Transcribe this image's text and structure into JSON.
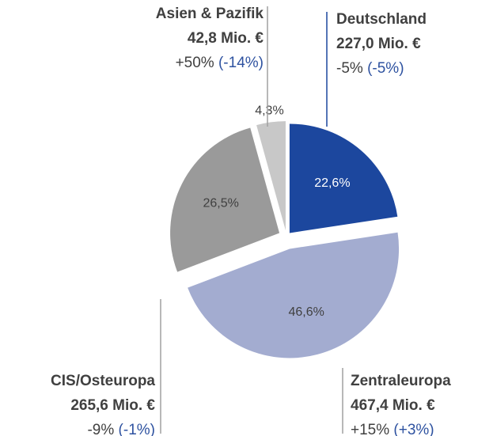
{
  "chart_data": {
    "type": "pie",
    "categories": [
      "Deutschland",
      "Zentraleuropa",
      "CIS/Osteuropa",
      "Asien & Pazifik"
    ],
    "values": [
      22.6,
      46.6,
      26.5,
      4.3
    ],
    "value_labels": [
      "22,6%",
      "46,6%",
      "26,5%",
      "4,3%"
    ],
    "colors": [
      "#1c479e",
      "#a3acd0",
      "#9a9a9a",
      "#c8c8c8"
    ],
    "amounts": [
      "227,0 Mio. €",
      "467,4 Mio. €",
      "265,6 Mio. €",
      "42,8 Mio. €"
    ],
    "changes": [
      "-5%",
      "+15%",
      "-9%",
      "+50%"
    ],
    "changes_prev": [
      "(-5%)",
      "(+3%)",
      "(-1%)",
      "(-14%)"
    ]
  }
}
